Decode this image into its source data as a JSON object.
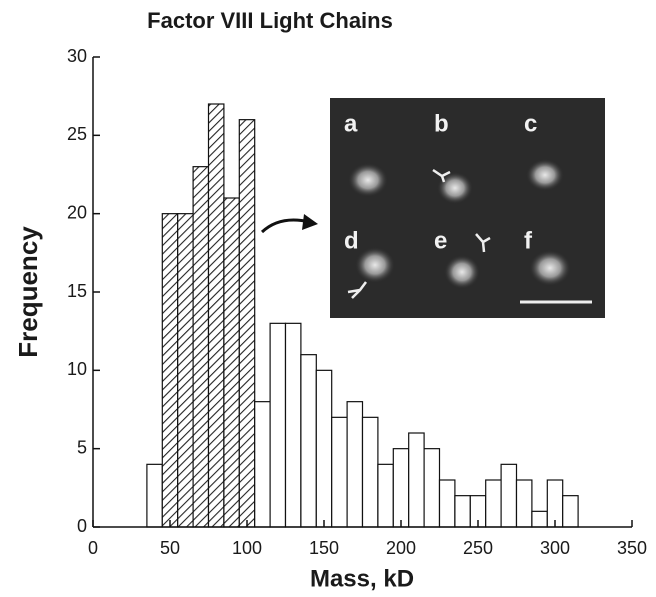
{
  "chart_data": {
    "type": "histogram",
    "title": "Factor VIII Light Chains",
    "xlabel": "Mass, kD",
    "ylabel": "Frequency",
    "bins": [
      35,
      45,
      55,
      65,
      75,
      85,
      95,
      105,
      115,
      125,
      135,
      145,
      155,
      165,
      175,
      185,
      195,
      205,
      215,
      225,
      235,
      245,
      255,
      265,
      275,
      285,
      295,
      305,
      315
    ],
    "values": [
      4,
      20,
      20,
      23,
      27,
      21,
      26,
      8,
      13,
      13,
      11,
      10,
      7,
      8,
      7,
      4,
      5,
      6,
      5,
      3,
      2,
      2,
      3,
      4,
      3,
      1,
      3,
      2
    ],
    "hatched": [
      false,
      true,
      true,
      true,
      true,
      true,
      true,
      false,
      false,
      false,
      false,
      false,
      false,
      false,
      false,
      false,
      false,
      false,
      false,
      false,
      false,
      false,
      false,
      false,
      false,
      false,
      false,
      false
    ],
    "color": "#ffffff",
    "xlim": [
      0,
      350
    ],
    "xticks": [
      0,
      50,
      100,
      150,
      200,
      250,
      300,
      350
    ],
    "ylim": [
      0,
      30
    ],
    "yticks": [
      0,
      5,
      10,
      15,
      20,
      25,
      30
    ],
    "inset_labels": [
      "a",
      "b",
      "c",
      "d",
      "e",
      "f"
    ]
  }
}
